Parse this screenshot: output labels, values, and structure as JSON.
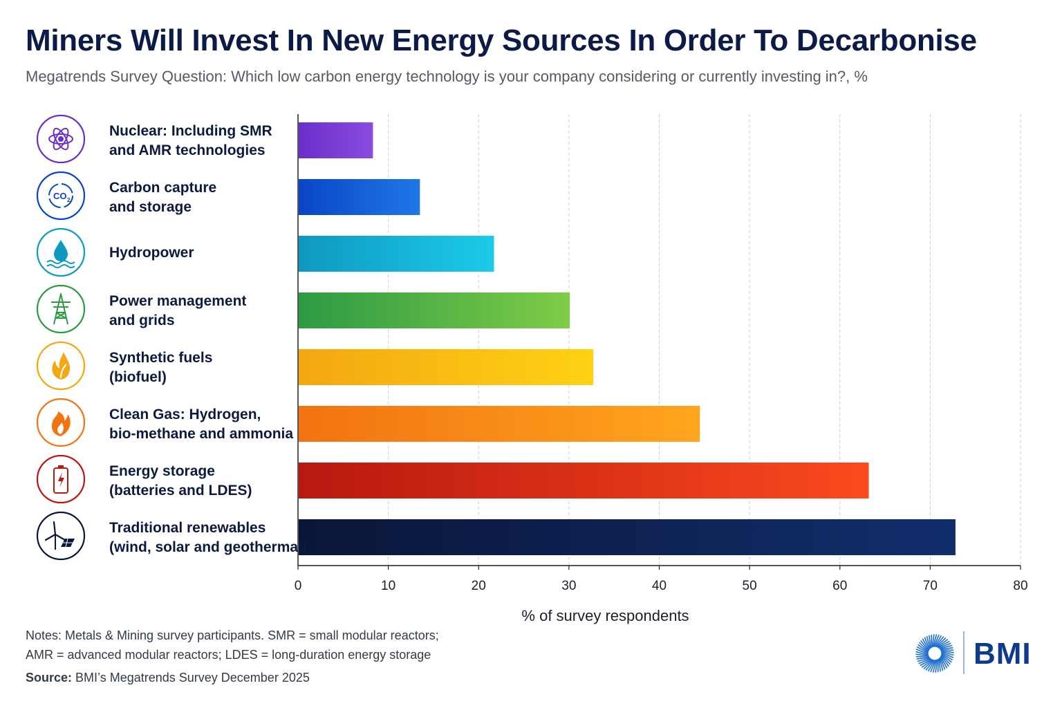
{
  "title": "Miners Will Invest In New Energy Sources In Order To Decarbonise",
  "subtitle": "Megatrends Survey Question: Which low carbon energy technology is your company considering or currently investing in?, %",
  "chart_data": {
    "type": "bar",
    "orientation": "horizontal",
    "categories": [
      [
        "Nuclear: Including SMR",
        "and AMR technologies"
      ],
      [
        "Carbon capture",
        "and storage"
      ],
      [
        "Hydropower"
      ],
      [
        "Power management",
        "and grids"
      ],
      [
        "Synthetic fuels",
        "(biofuel)"
      ],
      [
        "Clean Gas: Hydrogen,",
        "bio-methane and ammonia"
      ],
      [
        "Energy storage",
        "(batteries and LDES)"
      ],
      [
        "Traditional renewables",
        "(wind, solar and geothermal)"
      ]
    ],
    "values": [
      8.3,
      13.5,
      21.7,
      30.1,
      32.7,
      44.5,
      63.2,
      72.8
    ],
    "icons": [
      "atom-icon",
      "co2-icon",
      "water-drop-icon",
      "pylon-icon",
      "leaf-flame-icon",
      "flame-icon",
      "battery-icon",
      "wind-solar-icon"
    ],
    "colors": [
      [
        "#6a2fc9",
        "#8a4be0"
      ],
      [
        "#0a45c6",
        "#1f78e6"
      ],
      [
        "#0f98c1",
        "#1ccbe8"
      ],
      [
        "#2d9a44",
        "#7fcc47"
      ],
      [
        "#f3a712",
        "#ffd214"
      ],
      [
        "#f27312",
        "#ffa51e"
      ],
      [
        "#b8180f",
        "#fb4a1e"
      ],
      [
        "#0a1638",
        "#112e6c"
      ]
    ],
    "xlabel": "% of survey respondents",
    "xticks": [
      0,
      10,
      20,
      30,
      40,
      50,
      60,
      70,
      80
    ],
    "xlim": [
      0,
      80
    ],
    "grid": "vertical-dashed"
  },
  "notes": {
    "line1": "Notes: Metals & Mining survey participants. SMR = small modular reactors;",
    "line2": "AMR = advanced modular reactors; LDES = long-duration energy storage"
  },
  "source": {
    "label": "Source:",
    "text": " BMI’s Megatrends Survey December 2025"
  },
  "logo": {
    "text": "BMI",
    "color": "#0d3a8a"
  }
}
